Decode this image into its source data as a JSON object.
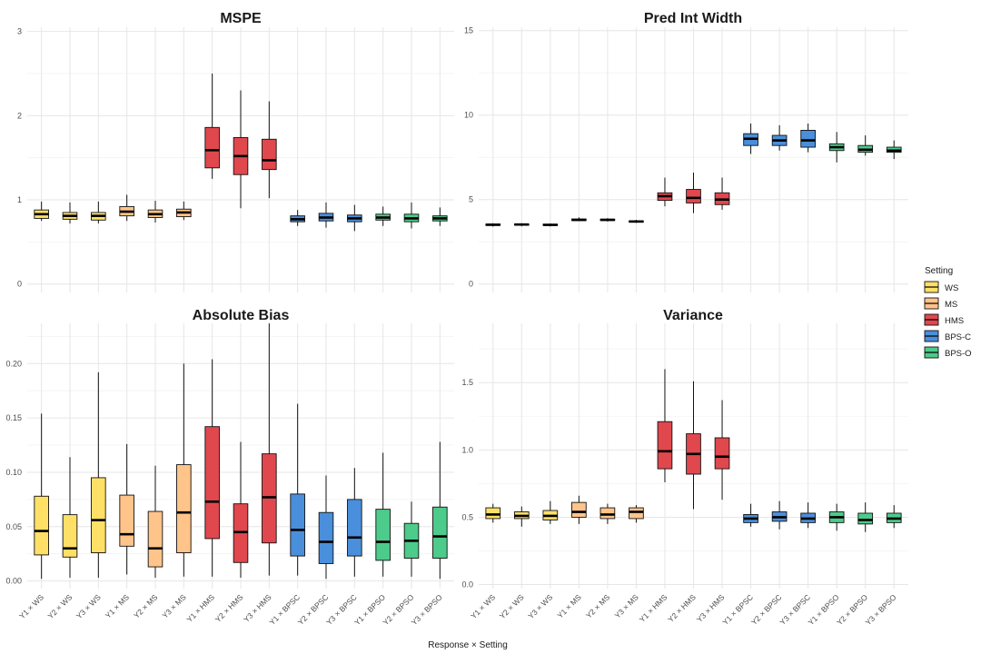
{
  "chart_data": {
    "type": "box",
    "xlabel": "Response × Setting",
    "categories": [
      "Y1 × WS",
      "Y2 × WS",
      "Y3 × WS",
      "Y1 × MS",
      "Y2 × MS",
      "Y3 × MS",
      "Y1 × HMS",
      "Y2 × HMS",
      "Y3 × HMS",
      "Y1 × BPSC",
      "Y2 × BPSC",
      "Y3 × BPSC",
      "Y1 × BPSO",
      "Y2 × BPSO",
      "Y3 × BPSO"
    ],
    "category_setting": [
      "WS",
      "WS",
      "WS",
      "MS",
      "MS",
      "MS",
      "HMS",
      "HMS",
      "HMS",
      "BPS-C",
      "BPS-C",
      "BPS-C",
      "BPS-O",
      "BPS-O",
      "BPS-O"
    ],
    "legend": {
      "title": "Setting",
      "position": "right",
      "entries": [
        {
          "name": "WS",
          "color": "#FFE066"
        },
        {
          "name": "MS",
          "color": "#FFC48A"
        },
        {
          "name": "HMS",
          "color": "#E0484E"
        },
        {
          "name": "BPS-C",
          "color": "#4A8FDB"
        },
        {
          "name": "BPS-O",
          "color": "#4CCB8A"
        }
      ]
    },
    "panels": [
      {
        "title": "MSPE",
        "ylim": [
          -0.1,
          3.05
        ],
        "yticks": [
          0,
          1,
          2,
          3
        ],
        "yticklabels": [
          "0",
          "1",
          "2",
          "3"
        ],
        "boxes": [
          [
            0.75,
            0.78,
            0.83,
            0.88,
            0.98
          ],
          [
            0.72,
            0.77,
            0.81,
            0.85,
            0.97
          ],
          [
            0.72,
            0.76,
            0.81,
            0.85,
            0.98
          ],
          [
            0.75,
            0.81,
            0.86,
            0.92,
            1.06
          ],
          [
            0.73,
            0.79,
            0.83,
            0.88,
            0.99
          ],
          [
            0.76,
            0.8,
            0.85,
            0.89,
            0.98
          ],
          [
            1.25,
            1.38,
            1.59,
            1.86,
            2.5
          ],
          [
            0.9,
            1.3,
            1.52,
            1.74,
            2.3
          ],
          [
            1.02,
            1.36,
            1.47,
            1.72,
            2.17
          ],
          [
            0.69,
            0.74,
            0.77,
            0.81,
            0.88
          ],
          [
            0.67,
            0.75,
            0.79,
            0.84,
            0.97
          ],
          [
            0.63,
            0.74,
            0.78,
            0.82,
            0.94
          ],
          [
            0.69,
            0.76,
            0.79,
            0.83,
            0.92
          ],
          [
            0.66,
            0.74,
            0.78,
            0.83,
            0.97
          ],
          [
            0.69,
            0.75,
            0.78,
            0.81,
            0.91
          ]
        ]
      },
      {
        "title": "Pred Int Width",
        "ylim": [
          -0.5,
          15.2
        ],
        "yticks": [
          0,
          5,
          10,
          15
        ],
        "yticklabels": [
          "0",
          "5",
          "10",
          "15"
        ],
        "boxes": [
          [
            3.4,
            3.47,
            3.51,
            3.55,
            3.6
          ],
          [
            3.42,
            3.48,
            3.52,
            3.55,
            3.6
          ],
          [
            3.41,
            3.47,
            3.5,
            3.54,
            3.59
          ],
          [
            3.72,
            3.76,
            3.8,
            3.85,
            3.95
          ],
          [
            3.7,
            3.76,
            3.8,
            3.84,
            3.9
          ],
          [
            3.62,
            3.67,
            3.7,
            3.74,
            3.8
          ],
          [
            4.6,
            4.95,
            5.2,
            5.4,
            6.3
          ],
          [
            4.2,
            4.8,
            5.1,
            5.6,
            6.6
          ],
          [
            4.4,
            4.7,
            5.0,
            5.4,
            6.3
          ],
          [
            7.7,
            8.2,
            8.6,
            8.9,
            9.5
          ],
          [
            7.9,
            8.2,
            8.5,
            8.8,
            9.4
          ],
          [
            7.8,
            8.1,
            8.5,
            9.1,
            9.5
          ],
          [
            7.2,
            7.9,
            8.1,
            8.3,
            9.0
          ],
          [
            7.6,
            7.8,
            7.95,
            8.2,
            8.8
          ],
          [
            7.4,
            7.8,
            7.9,
            8.1,
            8.5
          ]
        ]
      },
      {
        "title": "Absolute Bias",
        "ylim": [
          -0.007,
          0.237
        ],
        "yticks": [
          0,
          0.05,
          0.1,
          0.15,
          0.2
        ],
        "yticklabels": [
          "0.00",
          "0.05",
          "0.10",
          "0.15",
          "0.20"
        ],
        "boxes": [
          [
            0.002,
            0.024,
            0.046,
            0.078,
            0.154
          ],
          [
            0.003,
            0.022,
            0.03,
            0.061,
            0.114
          ],
          [
            0.003,
            0.026,
            0.056,
            0.095,
            0.192
          ],
          [
            0.006,
            0.032,
            0.043,
            0.079,
            0.126
          ],
          [
            0.003,
            0.013,
            0.03,
            0.064,
            0.106
          ],
          [
            0.004,
            0.026,
            0.063,
            0.107,
            0.2
          ],
          [
            0.004,
            0.039,
            0.073,
            0.142,
            0.204
          ],
          [
            0.003,
            0.017,
            0.045,
            0.071,
            0.128
          ],
          [
            0.005,
            0.035,
            0.077,
            0.117,
            0.237
          ],
          [
            0.005,
            0.023,
            0.047,
            0.08,
            0.163
          ],
          [
            0.002,
            0.016,
            0.036,
            0.063,
            0.097
          ],
          [
            0.004,
            0.023,
            0.04,
            0.075,
            0.104
          ],
          [
            0.004,
            0.019,
            0.036,
            0.066,
            0.118
          ],
          [
            0.004,
            0.021,
            0.037,
            0.053,
            0.073
          ],
          [
            0.002,
            0.021,
            0.041,
            0.068,
            0.128
          ]
        ]
      },
      {
        "title": "Variance",
        "ylim": [
          -0.03,
          1.94
        ],
        "yticks": [
          0,
          0.5,
          1,
          1.5
        ],
        "yticklabels": [
          "0.0",
          "0.5",
          "1.0",
          "1.5"
        ],
        "boxes": [
          [
            0.46,
            0.49,
            0.52,
            0.57,
            0.6
          ],
          [
            0.43,
            0.49,
            0.51,
            0.54,
            0.58
          ],
          [
            0.45,
            0.48,
            0.51,
            0.55,
            0.62
          ],
          [
            0.45,
            0.5,
            0.54,
            0.61,
            0.66
          ],
          [
            0.45,
            0.49,
            0.52,
            0.57,
            0.6
          ],
          [
            0.46,
            0.49,
            0.54,
            0.57,
            0.59
          ],
          [
            0.76,
            0.86,
            0.99,
            1.21,
            1.6
          ],
          [
            0.56,
            0.82,
            0.97,
            1.12,
            1.51
          ],
          [
            0.63,
            0.86,
            0.95,
            1.09,
            1.37
          ],
          [
            0.43,
            0.46,
            0.49,
            0.52,
            0.6
          ],
          [
            0.41,
            0.47,
            0.5,
            0.54,
            0.62
          ],
          [
            0.42,
            0.46,
            0.49,
            0.53,
            0.61
          ],
          [
            0.4,
            0.46,
            0.5,
            0.54,
            0.6
          ],
          [
            0.39,
            0.45,
            0.48,
            0.53,
            0.61
          ],
          [
            0.42,
            0.46,
            0.49,
            0.53,
            0.59
          ]
        ]
      }
    ]
  }
}
